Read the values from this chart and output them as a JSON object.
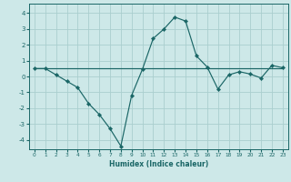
{
  "xlabel": "Humidex (Indice chaleur)",
  "ylabel": "",
  "bg_color": "#cde8e8",
  "grid_color": "#aacece",
  "line_color": "#1a6666",
  "xlim": [
    -0.5,
    23.5
  ],
  "ylim": [
    -4.6,
    4.6
  ],
  "yticks": [
    -4,
    -3,
    -2,
    -1,
    0,
    1,
    2,
    3,
    4
  ],
  "xticks": [
    0,
    1,
    2,
    3,
    4,
    5,
    6,
    7,
    8,
    9,
    10,
    11,
    12,
    13,
    14,
    15,
    16,
    17,
    18,
    19,
    20,
    21,
    22,
    23
  ],
  "series1_x": [
    0,
    1,
    2,
    3,
    4,
    5,
    6,
    7,
    8,
    9,
    10,
    11,
    12,
    13,
    14,
    15,
    16,
    17,
    18,
    19,
    20,
    21,
    22,
    23
  ],
  "series1_y": [
    0.5,
    0.5,
    0.1,
    -0.3,
    -0.7,
    -1.7,
    -2.4,
    -3.3,
    -4.4,
    -1.2,
    0.45,
    2.4,
    3.0,
    3.75,
    3.5,
    1.3,
    0.6,
    -0.8,
    0.1,
    0.3,
    0.15,
    -0.1,
    0.7,
    0.55
  ],
  "series2_x": [
    0,
    1,
    2,
    3,
    4,
    5,
    6,
    7,
    8,
    9,
    10,
    11,
    12,
    13,
    14,
    15,
    16,
    17,
    18,
    19,
    20,
    21,
    22,
    23
  ],
  "series2_y": [
    0.5,
    0.5,
    0.5,
    0.5,
    0.5,
    0.5,
    0.5,
    0.5,
    0.5,
    0.5,
    0.5,
    0.5,
    0.5,
    0.5,
    0.5,
    0.5,
    0.5,
    0.5,
    0.5,
    0.5,
    0.5,
    0.5,
    0.5,
    0.5
  ]
}
